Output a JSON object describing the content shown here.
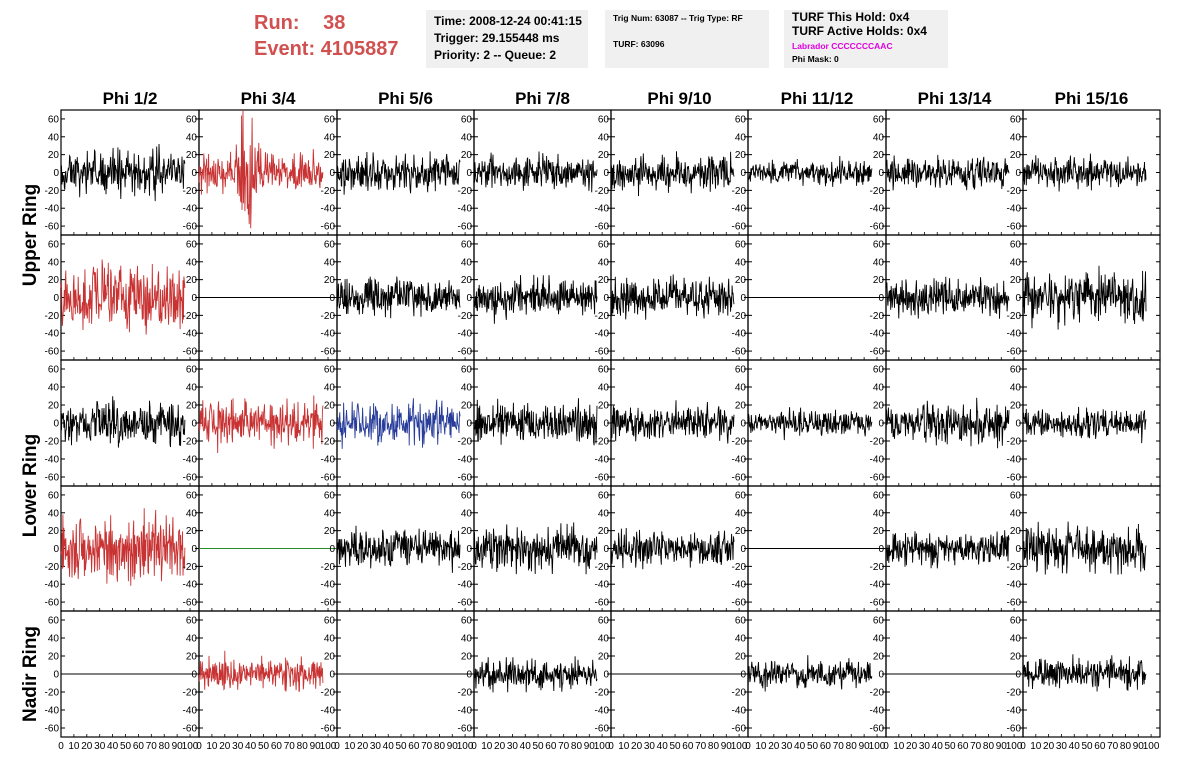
{
  "header": {
    "run_label": "Run:",
    "run_value": "38",
    "event_label": "Event:",
    "event_value": "4105887",
    "time": "Time: 2008-12-24 00:41:15",
    "trigger": "Trigger: 29.155448 ms",
    "priority": "Priority: 2 -- Queue: 2",
    "trig_num": "Trig Num: 63087 -- Trig Type: RF",
    "turf": "TURF: 63096",
    "turf_this_hold": "TURF This Hold: 0x4",
    "turf_active_holds": "TURF Active Holds: 0x4",
    "labrador": "Labrador CCCCCCCAAC",
    "phi_mask": "Phi Mask: 0"
  },
  "colors": {
    "normal": "#000000",
    "triggered": "#c83232",
    "blue": "#283c9a",
    "green": "#2a8a2a",
    "labrador": "#e000e0",
    "run_text": "#d15050",
    "info_bg": "#f0f0f0"
  },
  "chart_data": {
    "type": "line",
    "columns": [
      "Phi 1/2",
      "Phi 3/4",
      "Phi 5/6",
      "Phi 7/8",
      "Phi 9/10",
      "Phi 11/12",
      "Phi 13/14",
      "Phi 15/16"
    ],
    "rings": [
      "Upper Ring",
      "Lower Ring",
      "Nadir Ring"
    ],
    "xlim": [
      0,
      100
    ],
    "ylim": [
      -70,
      70
    ],
    "x_ticks": [
      0,
      10,
      20,
      30,
      40,
      50,
      60,
      70,
      80,
      90,
      100
    ],
    "x_tick_labels": [
      "0",
      "10",
      "20",
      "30",
      "40",
      "50",
      "60",
      "70",
      "80",
      "90",
      "100"
    ],
    "y_ticks": [
      -60,
      -40,
      -20,
      0,
      20,
      40,
      60
    ],
    "samples_per_trace": 260,
    "panels": [
      {
        "row": 0,
        "col": 0,
        "color": "normal",
        "amplitude": 18,
        "seed": 11
      },
      {
        "row": 0,
        "col": 1,
        "color": "triggered",
        "amplitude": 26,
        "seed": 12
      },
      {
        "row": 0,
        "col": 2,
        "color": "normal",
        "amplitude": 15,
        "seed": 13
      },
      {
        "row": 0,
        "col": 3,
        "color": "normal",
        "amplitude": 14,
        "seed": 14
      },
      {
        "row": 0,
        "col": 4,
        "color": "normal",
        "amplitude": 15,
        "seed": 15
      },
      {
        "row": 0,
        "col": 5,
        "color": "normal",
        "amplitude": 10,
        "seed": 16
      },
      {
        "row": 0,
        "col": 6,
        "color": "normal",
        "amplitude": 13,
        "seed": 17
      },
      {
        "row": 0,
        "col": 7,
        "color": "normal",
        "amplitude": 13,
        "seed": 18
      },
      {
        "row": 1,
        "col": 0,
        "color": "triggered",
        "amplitude": 28,
        "seed": 21
      },
      {
        "row": 1,
        "col": 1,
        "color": "normal",
        "amplitude": 0,
        "seed": 22
      },
      {
        "row": 1,
        "col": 2,
        "color": "normal",
        "amplitude": 16,
        "seed": 23
      },
      {
        "row": 1,
        "col": 3,
        "color": "normal",
        "amplitude": 17,
        "seed": 24
      },
      {
        "row": 1,
        "col": 4,
        "color": "normal",
        "amplitude": 16,
        "seed": 25
      },
      {
        "row": 1,
        "col": 5,
        "color": "normal",
        "amplitude": 0,
        "seed": 26
      },
      {
        "row": 1,
        "col": 6,
        "color": "normal",
        "amplitude": 15,
        "seed": 27
      },
      {
        "row": 1,
        "col": 7,
        "color": "normal",
        "amplitude": 20,
        "seed": 28
      },
      {
        "row": 2,
        "col": 0,
        "color": "normal",
        "amplitude": 17,
        "seed": 31
      },
      {
        "row": 2,
        "col": 1,
        "color": "triggered",
        "amplitude": 20,
        "seed": 32
      },
      {
        "row": 2,
        "col": 2,
        "color": "blue",
        "amplitude": 17,
        "seed": 33
      },
      {
        "row": 2,
        "col": 3,
        "color": "normal",
        "amplitude": 16,
        "seed": 34
      },
      {
        "row": 2,
        "col": 4,
        "color": "normal",
        "amplitude": 14,
        "seed": 35
      },
      {
        "row": 2,
        "col": 5,
        "color": "normal",
        "amplitude": 11,
        "seed": 36
      },
      {
        "row": 2,
        "col": 6,
        "color": "normal",
        "amplitude": 16,
        "seed": 37
      },
      {
        "row": 2,
        "col": 7,
        "color": "normal",
        "amplitude": 12,
        "seed": 38
      },
      {
        "row": 3,
        "col": 0,
        "color": "triggered",
        "amplitude": 26,
        "seed": 41
      },
      {
        "row": 3,
        "col": 1,
        "color": "green",
        "amplitude": 0,
        "seed": 42
      },
      {
        "row": 3,
        "col": 2,
        "color": "normal",
        "amplitude": 16,
        "seed": 43
      },
      {
        "row": 3,
        "col": 3,
        "color": "normal",
        "amplitude": 17,
        "seed": 44
      },
      {
        "row": 3,
        "col": 4,
        "color": "normal",
        "amplitude": 15,
        "seed": 45
      },
      {
        "row": 3,
        "col": 5,
        "color": "normal",
        "amplitude": 0,
        "seed": 46
      },
      {
        "row": 3,
        "col": 6,
        "color": "normal",
        "amplitude": 13,
        "seed": 47
      },
      {
        "row": 3,
        "col": 7,
        "color": "normal",
        "amplitude": 19,
        "seed": 48
      },
      {
        "row": 4,
        "col": 0,
        "color": "normal",
        "amplitude": 0,
        "seed": 51
      },
      {
        "row": 4,
        "col": 1,
        "color": "triggered",
        "amplitude": 15,
        "seed": 52
      },
      {
        "row": 4,
        "col": 2,
        "color": "normal",
        "amplitude": 0,
        "seed": 53
      },
      {
        "row": 4,
        "col": 3,
        "color": "normal",
        "amplitude": 13,
        "seed": 54
      },
      {
        "row": 4,
        "col": 4,
        "color": "normal",
        "amplitude": 0,
        "seed": 55
      },
      {
        "row": 4,
        "col": 5,
        "color": "normal",
        "amplitude": 12,
        "seed": 56
      },
      {
        "row": 4,
        "col": 6,
        "color": "normal",
        "amplitude": 0,
        "seed": 57
      },
      {
        "row": 4,
        "col": 7,
        "color": "normal",
        "amplitude": 13,
        "seed": 58
      }
    ]
  }
}
